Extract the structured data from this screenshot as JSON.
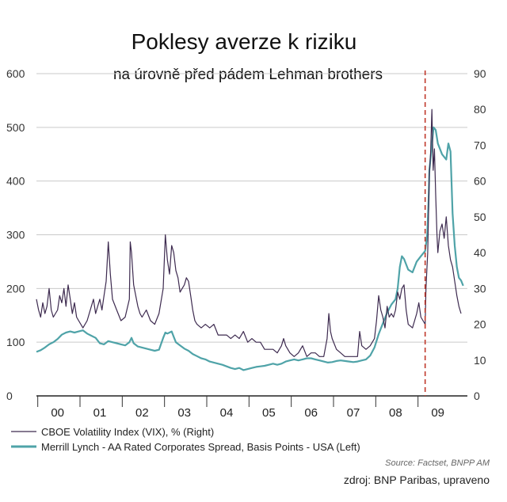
{
  "chart_data": {
    "type": "line",
    "title": "Poklesy averze k riziku",
    "subtitle": "na úrovně před pádem Lehman brothers",
    "y_left": {
      "range": [
        0,
        600
      ],
      "ticks": [
        "0",
        "100",
        "200",
        "300",
        "400",
        "500",
        "600"
      ]
    },
    "y_right": {
      "range": [
        0,
        90
      ],
      "ticks": [
        "0",
        "10",
        "20",
        "30",
        "40",
        "50",
        "60",
        "70",
        "80",
        "90"
      ]
    },
    "x_range": [
      1999.5,
      2009.7
    ],
    "x_ticks": [
      {
        "x": 2000,
        "label": "00"
      },
      {
        "x": 2001,
        "label": "01"
      },
      {
        "x": 2002,
        "label": "02"
      },
      {
        "x": 2003,
        "label": "03"
      },
      {
        "x": 2004,
        "label": "04"
      },
      {
        "x": 2005,
        "label": "05"
      },
      {
        "x": 2006,
        "label": "06"
      },
      {
        "x": 2007,
        "label": "07"
      },
      {
        "x": 2008,
        "label": "08"
      },
      {
        "x": 2009,
        "label": "09"
      }
    ],
    "grid": true,
    "marker_line": {
      "x": 2008.7,
      "style": "dashed",
      "color": "#c0392b"
    },
    "series": [
      {
        "name": "CBOE Volatility Index (VIX), %  (Right)",
        "axis": "right",
        "color": "#3d2a4f",
        "points": [
          [
            1999.5,
            27
          ],
          [
            1999.55,
            24
          ],
          [
            1999.6,
            22
          ],
          [
            1999.65,
            26
          ],
          [
            1999.7,
            23
          ],
          [
            1999.75,
            25
          ],
          [
            1999.8,
            30
          ],
          [
            1999.85,
            24
          ],
          [
            1999.9,
            22
          ],
          [
            2000.0,
            24
          ],
          [
            2000.05,
            28
          ],
          [
            2000.1,
            26
          ],
          [
            2000.15,
            30
          ],
          [
            2000.2,
            25
          ],
          [
            2000.25,
            31
          ],
          [
            2000.3,
            27
          ],
          [
            2000.35,
            23
          ],
          [
            2000.4,
            26
          ],
          [
            2000.45,
            22
          ],
          [
            2000.5,
            21
          ],
          [
            2000.6,
            19
          ],
          [
            2000.7,
            21
          ],
          [
            2000.8,
            25
          ],
          [
            2000.85,
            27
          ],
          [
            2000.9,
            23
          ],
          [
            2000.95,
            25
          ],
          [
            2001.0,
            27
          ],
          [
            2001.05,
            24
          ],
          [
            2001.1,
            28
          ],
          [
            2001.15,
            32
          ],
          [
            2001.2,
            43
          ],
          [
            2001.25,
            34
          ],
          [
            2001.3,
            27
          ],
          [
            2001.4,
            24
          ],
          [
            2001.5,
            21
          ],
          [
            2001.6,
            22
          ],
          [
            2001.7,
            27
          ],
          [
            2001.72,
            43
          ],
          [
            2001.75,
            40
          ],
          [
            2001.8,
            31
          ],
          [
            2001.9,
            25
          ],
          [
            2001.95,
            23
          ],
          [
            2002.0,
            22
          ],
          [
            2002.1,
            24
          ],
          [
            2002.2,
            21
          ],
          [
            2002.3,
            20
          ],
          [
            2002.4,
            23
          ],
          [
            2002.5,
            30
          ],
          [
            2002.55,
            45
          ],
          [
            2002.6,
            38
          ],
          [
            2002.65,
            34
          ],
          [
            2002.7,
            42
          ],
          [
            2002.75,
            40
          ],
          [
            2002.8,
            35
          ],
          [
            2002.85,
            33
          ],
          [
            2002.9,
            29
          ],
          [
            2002.95,
            30
          ],
          [
            2003.0,
            31
          ],
          [
            2003.05,
            33
          ],
          [
            2003.1,
            32
          ],
          [
            2003.15,
            28
          ],
          [
            2003.2,
            24
          ],
          [
            2003.25,
            21
          ],
          [
            2003.3,
            20
          ],
          [
            2003.4,
            19
          ],
          [
            2003.5,
            20
          ],
          [
            2003.6,
            19
          ],
          [
            2003.7,
            20
          ],
          [
            2003.8,
            17
          ],
          [
            2003.9,
            17
          ],
          [
            2004.0,
            17
          ],
          [
            2004.1,
            16
          ],
          [
            2004.2,
            17
          ],
          [
            2004.3,
            16
          ],
          [
            2004.4,
            18
          ],
          [
            2004.5,
            15
          ],
          [
            2004.6,
            16
          ],
          [
            2004.7,
            15
          ],
          [
            2004.8,
            15
          ],
          [
            2004.9,
            13
          ],
          [
            2005.0,
            13
          ],
          [
            2005.1,
            13
          ],
          [
            2005.2,
            12
          ],
          [
            2005.3,
            14
          ],
          [
            2005.35,
            16
          ],
          [
            2005.4,
            14
          ],
          [
            2005.5,
            12
          ],
          [
            2005.6,
            11
          ],
          [
            2005.7,
            12
          ],
          [
            2005.8,
            14
          ],
          [
            2005.9,
            11
          ],
          [
            2006.0,
            12
          ],
          [
            2006.1,
            12
          ],
          [
            2006.2,
            11
          ],
          [
            2006.3,
            11
          ],
          [
            2006.38,
            16
          ],
          [
            2006.42,
            23
          ],
          [
            2006.46,
            18
          ],
          [
            2006.5,
            16
          ],
          [
            2006.6,
            13
          ],
          [
            2006.7,
            12
          ],
          [
            2006.8,
            11
          ],
          [
            2006.9,
            11
          ],
          [
            2007.0,
            11
          ],
          [
            2007.1,
            11
          ],
          [
            2007.15,
            18
          ],
          [
            2007.2,
            14
          ],
          [
            2007.3,
            13
          ],
          [
            2007.4,
            14
          ],
          [
            2007.5,
            16
          ],
          [
            2007.55,
            21
          ],
          [
            2007.6,
            28
          ],
          [
            2007.65,
            24
          ],
          [
            2007.7,
            22
          ],
          [
            2007.75,
            19
          ],
          [
            2007.8,
            25
          ],
          [
            2007.85,
            22
          ],
          [
            2007.9,
            23
          ],
          [
            2007.95,
            22
          ],
          [
            2008.0,
            24
          ],
          [
            2008.05,
            29
          ],
          [
            2008.1,
            27
          ],
          [
            2008.15,
            30
          ],
          [
            2008.2,
            31
          ],
          [
            2008.25,
            24
          ],
          [
            2008.3,
            20
          ],
          [
            2008.4,
            19
          ],
          [
            2008.5,
            23
          ],
          [
            2008.55,
            26
          ],
          [
            2008.6,
            22
          ],
          [
            2008.65,
            21
          ],
          [
            2008.7,
            20
          ],
          [
            2008.72,
            30
          ],
          [
            2008.76,
            40
          ],
          [
            2008.8,
            62
          ],
          [
            2008.83,
            68
          ],
          [
            2008.86,
            80
          ],
          [
            2008.89,
            63
          ],
          [
            2008.92,
            69
          ],
          [
            2008.95,
            56
          ],
          [
            2008.98,
            45
          ],
          [
            2009.0,
            40
          ],
          [
            2009.05,
            46
          ],
          [
            2009.1,
            48
          ],
          [
            2009.15,
            44
          ],
          [
            2009.2,
            50
          ],
          [
            2009.25,
            42
          ],
          [
            2009.3,
            38
          ],
          [
            2009.35,
            36
          ],
          [
            2009.4,
            32
          ],
          [
            2009.45,
            28
          ],
          [
            2009.5,
            25
          ],
          [
            2009.55,
            23
          ]
        ]
      },
      {
        "name": "Merrill Lynch - AA Rated Corporates Spread, Basis Points - USA  (Left)",
        "axis": "left",
        "color": "#4fa3a8",
        "points": [
          [
            1999.5,
            82
          ],
          [
            1999.6,
            85
          ],
          [
            1999.7,
            90
          ],
          [
            1999.8,
            96
          ],
          [
            1999.9,
            100
          ],
          [
            2000.0,
            106
          ],
          [
            2000.1,
            114
          ],
          [
            2000.2,
            118
          ],
          [
            2000.3,
            120
          ],
          [
            2000.4,
            118
          ],
          [
            2000.5,
            120
          ],
          [
            2000.6,
            122
          ],
          [
            2000.7,
            116
          ],
          [
            2000.8,
            112
          ],
          [
            2000.9,
            108
          ],
          [
            2001.0,
            98
          ],
          [
            2001.1,
            96
          ],
          [
            2001.2,
            102
          ],
          [
            2001.3,
            100
          ],
          [
            2001.4,
            98
          ],
          [
            2001.5,
            96
          ],
          [
            2001.6,
            94
          ],
          [
            2001.7,
            100
          ],
          [
            2001.75,
            108
          ],
          [
            2001.8,
            98
          ],
          [
            2001.9,
            92
          ],
          [
            2002.0,
            90
          ],
          [
            2002.1,
            88
          ],
          [
            2002.2,
            86
          ],
          [
            2002.3,
            84
          ],
          [
            2002.4,
            86
          ],
          [
            2002.5,
            108
          ],
          [
            2002.55,
            118
          ],
          [
            2002.6,
            116
          ],
          [
            2002.7,
            120
          ],
          [
            2002.75,
            110
          ],
          [
            2002.8,
            100
          ],
          [
            2002.9,
            94
          ],
          [
            2003.0,
            88
          ],
          [
            2003.1,
            84
          ],
          [
            2003.2,
            78
          ],
          [
            2003.3,
            74
          ],
          [
            2003.4,
            70
          ],
          [
            2003.5,
            68
          ],
          [
            2003.6,
            64
          ],
          [
            2003.7,
            62
          ],
          [
            2003.8,
            60
          ],
          [
            2003.9,
            58
          ],
          [
            2004.0,
            55
          ],
          [
            2004.1,
            52
          ],
          [
            2004.2,
            50
          ],
          [
            2004.3,
            52
          ],
          [
            2004.4,
            48
          ],
          [
            2004.5,
            50
          ],
          [
            2004.6,
            52
          ],
          [
            2004.7,
            54
          ],
          [
            2004.8,
            55
          ],
          [
            2004.9,
            56
          ],
          [
            2005.0,
            58
          ],
          [
            2005.1,
            60
          ],
          [
            2005.2,
            58
          ],
          [
            2005.3,
            60
          ],
          [
            2005.4,
            64
          ],
          [
            2005.5,
            66
          ],
          [
            2005.6,
            68
          ],
          [
            2005.7,
            66
          ],
          [
            2005.8,
            68
          ],
          [
            2005.9,
            70
          ],
          [
            2006.0,
            70
          ],
          [
            2006.1,
            68
          ],
          [
            2006.2,
            66
          ],
          [
            2006.3,
            64
          ],
          [
            2006.4,
            62
          ],
          [
            2006.5,
            63
          ],
          [
            2006.6,
            65
          ],
          [
            2006.7,
            66
          ],
          [
            2006.8,
            65
          ],
          [
            2006.9,
            64
          ],
          [
            2007.0,
            63
          ],
          [
            2007.1,
            64
          ],
          [
            2007.2,
            66
          ],
          [
            2007.3,
            68
          ],
          [
            2007.4,
            75
          ],
          [
            2007.5,
            90
          ],
          [
            2007.6,
            115
          ],
          [
            2007.7,
            135
          ],
          [
            2007.8,
            155
          ],
          [
            2007.9,
            170
          ],
          [
            2008.0,
            180
          ],
          [
            2008.05,
            200
          ],
          [
            2008.1,
            240
          ],
          [
            2008.15,
            260
          ],
          [
            2008.2,
            255
          ],
          [
            2008.3,
            235
          ],
          [
            2008.4,
            230
          ],
          [
            2008.5,
            250
          ],
          [
            2008.6,
            260
          ],
          [
            2008.7,
            270
          ],
          [
            2008.75,
            300
          ],
          [
            2008.78,
            360
          ],
          [
            2008.8,
            420
          ],
          [
            2008.85,
            460
          ],
          [
            2008.9,
            500
          ],
          [
            2008.95,
            495
          ],
          [
            2009.0,
            470
          ],
          [
            2009.1,
            450
          ],
          [
            2009.2,
            440
          ],
          [
            2009.25,
            470
          ],
          [
            2009.3,
            455
          ],
          [
            2009.35,
            340
          ],
          [
            2009.4,
            280
          ],
          [
            2009.45,
            240
          ],
          [
            2009.5,
            220
          ],
          [
            2009.55,
            215
          ],
          [
            2009.6,
            205
          ]
        ]
      }
    ],
    "legend": [
      {
        "label": "CBOE Volatility Index (VIX), %  (Right)",
        "color": "#3d2a4f",
        "width": 1.2
      },
      {
        "label": "Merrill Lynch - AA Rated Corporates Spread, Basis Points - USA  (Left)",
        "color": "#4fa3a8",
        "width": 3
      }
    ],
    "source": "Source: Factset, BNPP AM"
  },
  "footer": {
    "credit": "zdroj: BNP Paribas, upraveno"
  }
}
